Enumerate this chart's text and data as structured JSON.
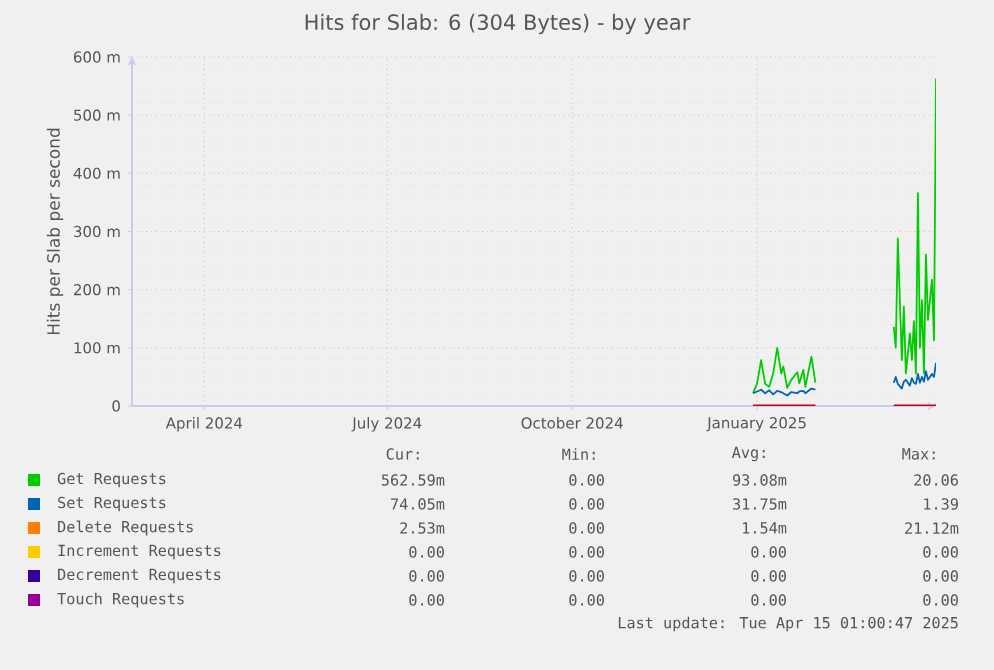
{
  "chart_data": {
    "type": "line",
    "title": "Hits for Slab: 6 (304 Bytes) - by year",
    "ylabel": "Hits per Slab per second",
    "x": [
      "2025-01-14",
      "2025-01-16",
      "2025-01-18",
      "2025-01-20",
      "2025-01-22",
      "2025-01-24",
      "2025-01-26",
      "2025-01-28",
      "2025-01-29",
      "2025-01-31",
      "2025-02-02",
      "2025-02-05",
      "2025-02-06",
      "2025-02-08",
      "2025-02-09",
      "2025-02-12",
      "2025-02-14",
      "2025-02-20",
      "2025-03-25",
      "2025-03-26",
      "2025-03-27",
      "2025-03-29",
      "2025-03-30",
      "2025-03-31",
      "2025-04-02",
      "2025-04-03",
      "2025-04-04",
      "2025-04-05",
      "2025-04-06",
      "2025-04-07",
      "2025-04-08",
      "2025-04-09",
      "2025-04-10",
      "2025-04-11",
      "2025-04-13",
      "2025-04-14",
      "2025-04-15"
    ],
    "series": [
      {
        "name": "Get Requests",
        "color": "#00cc00",
        "values": [
          22,
          39,
          79,
          38,
          33,
          56,
          100,
          56,
          68,
          31,
          45,
          58,
          39,
          62,
          33,
          85,
          40,
          null,
          136,
          100,
          288,
          79,
          171,
          56,
          125,
          79,
          146,
          56,
          366,
          100,
          182,
          56,
          260,
          148,
          217,
          113,
          563
        ]
      },
      {
        "name": "Set Requests",
        "color": "#0066b3",
        "values": [
          22,
          25,
          28,
          22,
          27,
          20,
          26,
          24,
          22,
          18,
          24,
          22,
          25,
          26,
          22,
          30,
          28,
          null,
          40,
          50,
          38,
          30,
          42,
          45,
          35,
          48,
          40,
          38,
          55,
          40,
          50,
          42,
          60,
          45,
          55,
          50,
          74
        ]
      },
      {
        "name": "Delete Requests",
        "color": "#ff8000",
        "values": [
          2,
          2,
          2,
          2,
          2,
          2,
          2,
          2,
          2,
          2,
          2,
          2,
          2,
          2,
          2,
          2,
          2,
          null,
          2,
          2,
          2,
          2,
          2,
          2,
          2,
          2,
          2,
          2,
          2,
          2,
          2,
          2,
          2,
          2,
          2,
          2,
          3
        ]
      },
      {
        "name": "Increment Requests",
        "color": "#ffcc00",
        "values": [
          null,
          null,
          null,
          null,
          null,
          null,
          null,
          null,
          null,
          null,
          null,
          null,
          null,
          null,
          null,
          null,
          null,
          null,
          null,
          null,
          null,
          null,
          null,
          null,
          null,
          null,
          null,
          null,
          null,
          null,
          null,
          null,
          null,
          null,
          null,
          null,
          null
        ]
      },
      {
        "name": "Decrement Requests",
        "color": "#330099",
        "values": [
          null,
          null,
          null,
          null,
          null,
          null,
          null,
          null,
          null,
          null,
          null,
          null,
          null,
          null,
          null,
          null,
          null,
          null,
          null,
          null,
          null,
          null,
          null,
          null,
          null,
          null,
          null,
          null,
          null,
          null,
          null,
          null,
          null,
          null,
          null,
          null,
          null
        ]
      },
      {
        "name": "Touch Requests",
        "color": "#990099",
        "values": [
          0,
          0,
          0,
          0,
          0,
          0,
          0,
          0,
          0,
          0,
          0,
          0,
          0,
          0,
          0,
          0,
          0,
          null,
          0,
          0,
          0,
          0,
          0,
          0,
          0,
          0,
          0,
          0,
          0,
          0,
          0,
          0,
          0,
          0,
          0,
          0,
          0
        ]
      }
    ],
    "xlim": [
      "2024-03-11",
      "2025-04-15"
    ],
    "xticks": [
      {
        "value": "2024-04-16",
        "label": "April 2024"
      },
      {
        "value": "2024-07-16",
        "label": "July 2024"
      },
      {
        "value": "2024-10-16",
        "label": "October 2024"
      },
      {
        "value": "2025-01-16",
        "label": "January 2025"
      }
    ],
    "ylim": [
      0,
      600
    ],
    "yticks": [
      0,
      {
        "value": 100,
        "label": "100 m"
      },
      {
        "value": 200,
        "label": "200 m"
      },
      {
        "value": 300,
        "label": "300 m"
      },
      {
        "value": 400,
        "label": "400 m"
      },
      {
        "value": 500,
        "label": "500 m"
      },
      {
        "value": 600,
        "label": "600 m"
      }
    ],
    "grid": true,
    "legend": "bottom",
    "marker": "none",
    "line_style": "solid",
    "annotations": [
      "Cur:",
      "Min:",
      "Avg:",
      "Max:",
      "562.59m",
      "0.00",
      "93.08m",
      "20.06",
      "74.05m",
      "0.00",
      "31.75m",
      "1.39",
      "2.53m",
      "0.00",
      "1.54m",
      "21.12m",
      "0.00",
      "0.00",
      "0.00",
      "0.00",
      "0.00",
      "0.00",
      "0.00",
      "0.00",
      "0.00",
      "0.00",
      "0.00",
      "0.00",
      "Last update: Tue Apr 15 01:00:47 2025"
    ]
  }
}
